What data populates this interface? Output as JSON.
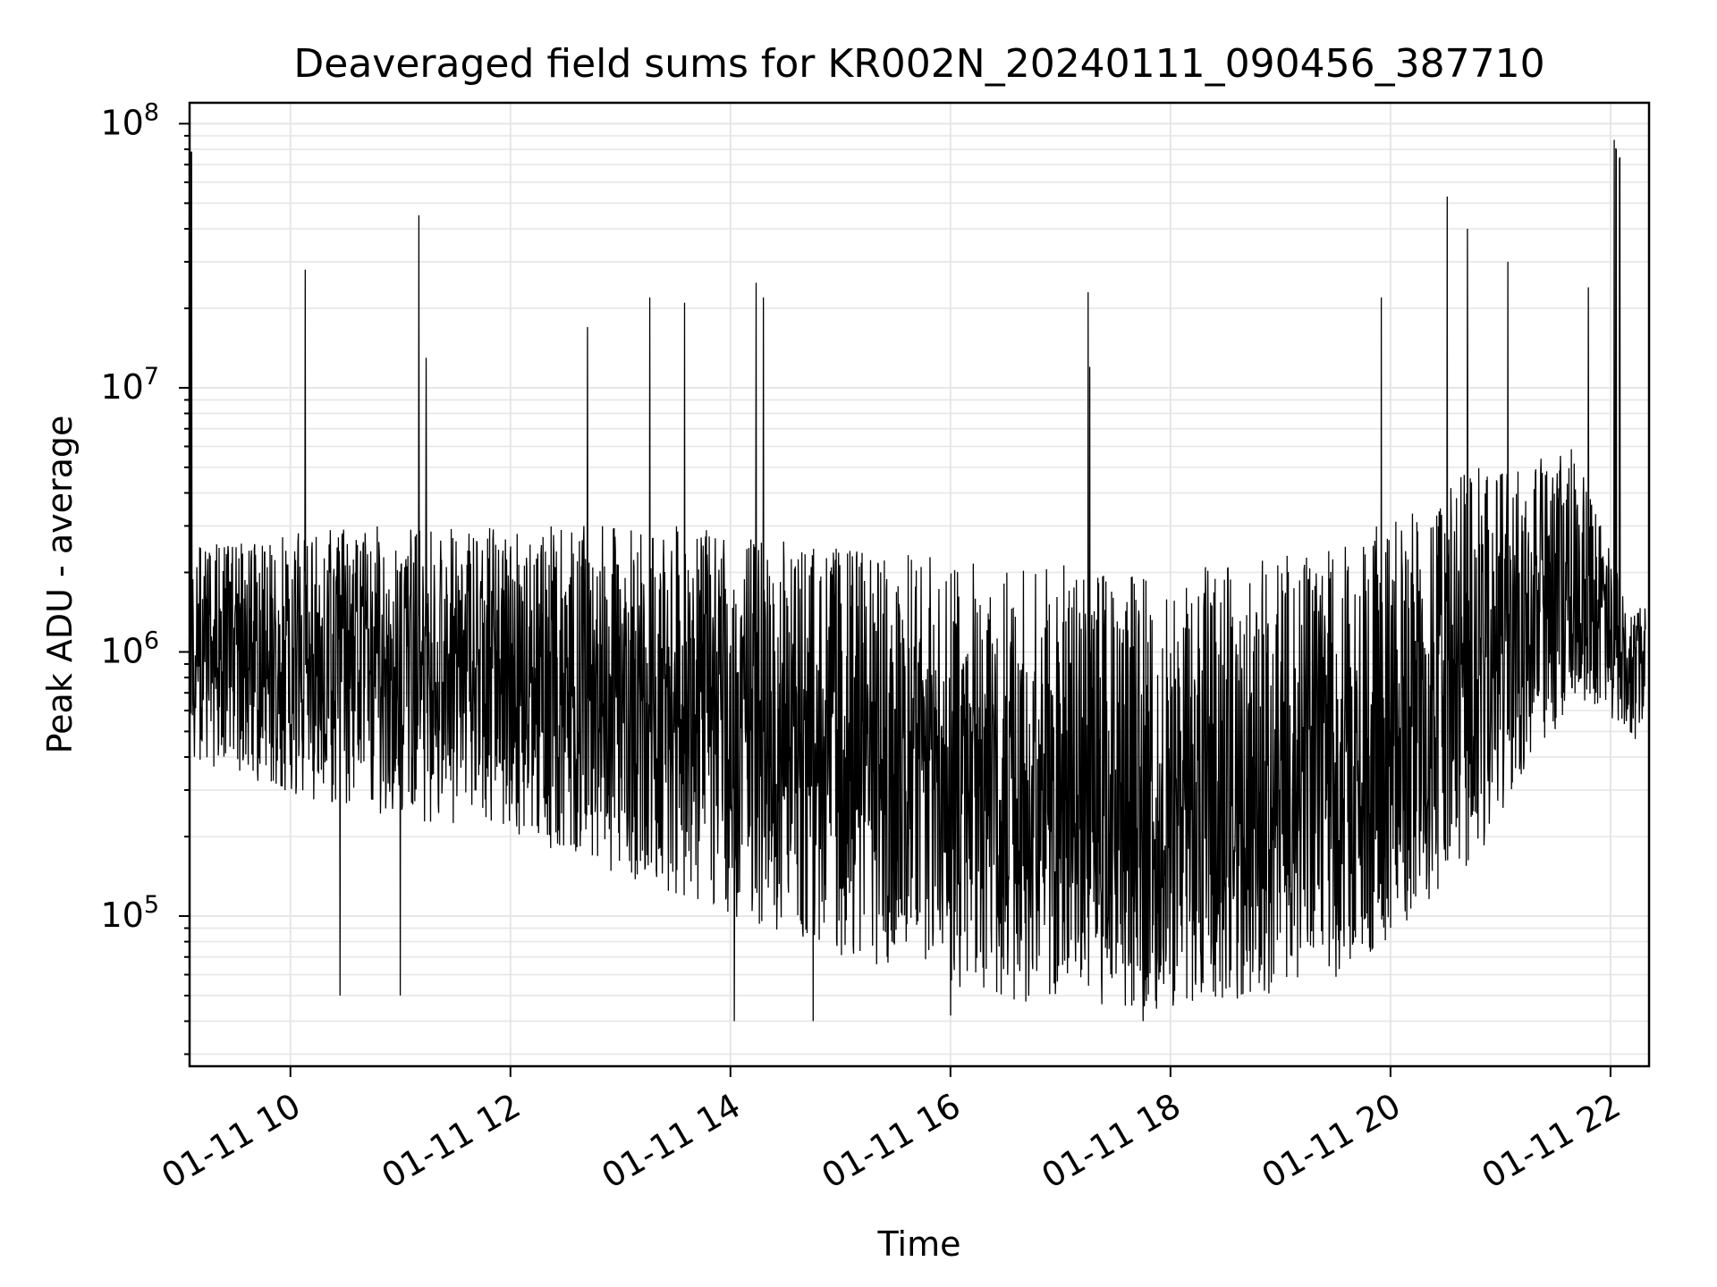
{
  "chart_data": {
    "type": "line",
    "title": "Deaveraged field sums for KR002N_20240111_090456_387710",
    "xlabel": "Time",
    "ylabel": "Peak ADU - average",
    "x_start": "2024-01-11 09:05",
    "x_end": "2024-01-11 22:19",
    "xlim": [
      "2024-01-11 09:05",
      "2024-01-11 22:21"
    ],
    "ylim": [
      27000,
      120000000
    ],
    "y_scale": "log",
    "grid": true,
    "series_color": "#000000",
    "x_ticks": [
      {
        "value": "2024-01-11 10:00",
        "label": "01-11 10"
      },
      {
        "value": "2024-01-11 12:00",
        "label": "01-11 12"
      },
      {
        "value": "2024-01-11 14:00",
        "label": "01-11 14"
      },
      {
        "value": "2024-01-11 16:00",
        "label": "01-11 16"
      },
      {
        "value": "2024-01-11 18:00",
        "label": "01-11 18"
      },
      {
        "value": "2024-01-11 20:00",
        "label": "01-11 20"
      },
      {
        "value": "2024-01-11 22:00",
        "label": "01-11 22"
      }
    ],
    "y_ticks": [
      {
        "value": 100000,
        "base": "10",
        "exp": "5"
      },
      {
        "value": 1000000,
        "base": "10",
        "exp": "6"
      },
      {
        "value": 10000000,
        "base": "10",
        "exp": "7"
      },
      {
        "value": 100000000,
        "base": "10",
        "exp": "8"
      }
    ],
    "profile": [
      {
        "t": "09:05",
        "median": 1100000,
        "hi": 2500000,
        "lo": 450000
      },
      {
        "t": "10:30",
        "median": 1000000,
        "hi": 3000000,
        "lo": 300000
      },
      {
        "t": "12:00",
        "median": 900000,
        "hi": 3000000,
        "lo": 250000
      },
      {
        "t": "13:30",
        "median": 700000,
        "hi": 3000000,
        "lo": 150000
      },
      {
        "t": "15:00",
        "median": 450000,
        "hi": 2500000,
        "lo": 90000
      },
      {
        "t": "16:30",
        "median": 300000,
        "hi": 2200000,
        "lo": 60000
      },
      {
        "t": "18:00",
        "median": 250000,
        "hi": 2000000,
        "lo": 55000
      },
      {
        "t": "19:30",
        "median": 300000,
        "hi": 2500000,
        "lo": 70000
      },
      {
        "t": "20:45",
        "median": 1200000,
        "hi": 5000000,
        "lo": 200000
      },
      {
        "t": "21:40",
        "median": 2000000,
        "hi": 6000000,
        "lo": 700000
      },
      {
        "t": "22:10",
        "median": 800000,
        "hi": 1500000,
        "lo": 500000
      }
    ],
    "spikes": [
      {
        "t": "09:06",
        "value": 78000000
      },
      {
        "t": "10:08",
        "value": 28000000
      },
      {
        "t": "11:10",
        "value": 45000000
      },
      {
        "t": "11:14",
        "value": 13000000
      },
      {
        "t": "12:42",
        "value": 17000000
      },
      {
        "t": "13:16",
        "value": 22000000
      },
      {
        "t": "13:35",
        "value": 21000000
      },
      {
        "t": "14:14",
        "value": 25000000
      },
      {
        "t": "14:18",
        "value": 22000000
      },
      {
        "t": "17:15",
        "value": 23000000
      },
      {
        "t": "17:16",
        "value": 12000000
      },
      {
        "t": "19:55",
        "value": 22000000
      },
      {
        "t": "20:31",
        "value": 53000000
      },
      {
        "t": "20:42",
        "value": 40000000
      },
      {
        "t": "21:04",
        "value": 30000000
      },
      {
        "t": "21:48",
        "value": 24000000
      },
      {
        "t": "10:27",
        "value": 50000
      },
      {
        "t": "11:00",
        "value": 50000
      },
      {
        "t": "14:02",
        "value": 40000
      },
      {
        "t": "14:45",
        "value": 40000
      },
      {
        "t": "16:00",
        "value": 42000
      },
      {
        "t": "17:45",
        "value": 40000
      }
    ],
    "plateau": [
      {
        "t": "22:02",
        "value": 90000000
      },
      {
        "t": "22:03",
        "value": 82000000
      },
      {
        "t": "22:05",
        "value": 76000000
      }
    ]
  }
}
